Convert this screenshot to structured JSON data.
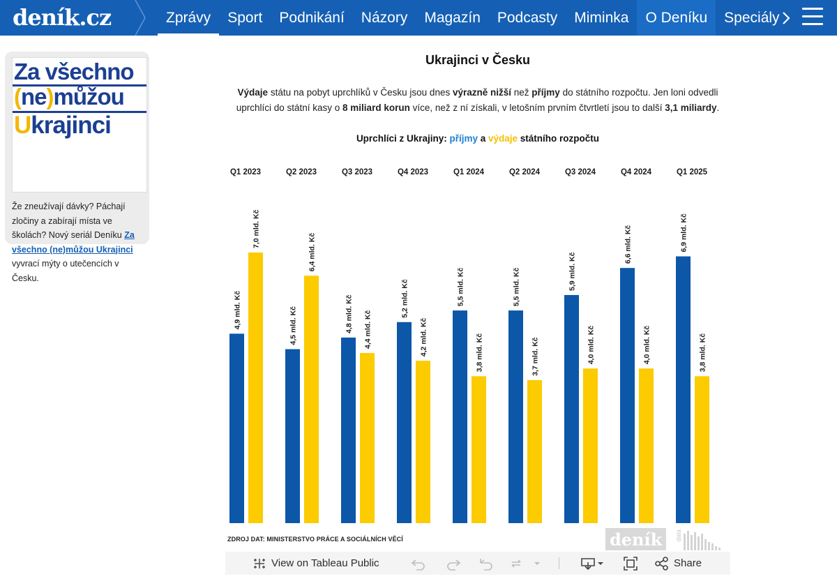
{
  "site": {
    "logo": "deník.cz",
    "nav": [
      "Zprávy",
      "Sport",
      "Podnikání",
      "Názory",
      "Magazín",
      "Podcasty",
      "Miminka",
      "O Deníku",
      "Speciály"
    ],
    "active": "Zprávy"
  },
  "promo": {
    "art_lines": [
      "Za všechno",
      "(ne)můžou",
      "Ukrajinci"
    ],
    "text_before": "Že zneužívají dávky? Páchají zločiny a zabírají místa ve školách? Nový seriál Deníku ",
    "link": "Za všechno (ne)můžou Ukrajinci",
    "text_after": " vyvrací mýty o utečencích v Česku."
  },
  "viz": {
    "title": "Ukrajinci v Česku",
    "desc_parts": [
      {
        "t": "Výdaje",
        "b": true
      },
      {
        "t": " státu na pobyt uprchlíků v Česku jsou dnes ",
        "b": false
      },
      {
        "t": "výrazně nižší",
        "b": true
      },
      {
        "t": " než ",
        "b": false
      },
      {
        "t": "příjmy",
        "b": true
      },
      {
        "t": " do státního rozpočtu. Jen loni odvedli uprchlíci do státní kasy o ",
        "b": false
      },
      {
        "t": "8 miliard korun",
        "b": true
      },
      {
        "t": " více, než z ní získali, v letošním prvním čtvrtletí jsou to další ",
        "b": false
      },
      {
        "t": "3,1 miliardy",
        "b": true
      },
      {
        "t": ".",
        "b": false
      }
    ],
    "subtitle_pre": "Uprchlíci z Ukrajiny: ",
    "subtitle_income": "příjmy",
    "subtitle_and": " a ",
    "subtitle_expense": "výdaje",
    "subtitle_post": " státního rozpočtu",
    "source": "ZDROJ DAT: MINISTERSTVO PRÁCE A SOCIÁLNÍCH VĚCÍ",
    "watermark": "deník",
    "watermark_sub": "data"
  },
  "chart_data": {
    "type": "bar",
    "categories": [
      "Q1 2023",
      "Q2 2023",
      "Q3 2023",
      "Q4 2023",
      "Q1 2024",
      "Q2 2024",
      "Q3 2024",
      "Q4 2024",
      "Q1 2025"
    ],
    "series": [
      {
        "name": "příjmy",
        "color": "#0c57a8",
        "values": [
          4.9,
          4.5,
          4.8,
          5.2,
          5.5,
          5.5,
          5.9,
          6.6,
          6.9
        ],
        "labels": [
          "4,9 mld. Kč",
          "4,5 mld. Kč",
          "4,8 mld. Kč",
          "5,2 mld. Kč",
          "5,5 mld. Kč",
          "5,5 mld. Kč",
          "5,9 mld. Kč",
          "6,6 mld. Kč",
          "6,9 mld. Kč"
        ]
      },
      {
        "name": "výdaje",
        "color": "#fccb00",
        "values": [
          7.0,
          6.4,
          4.4,
          4.2,
          3.8,
          3.7,
          4.0,
          4.0,
          3.8
        ],
        "labels": [
          "7,0 mld. Kč",
          "6,4 mld. Kč",
          "4,4 mld. Kč",
          "4,2 mld. Kč",
          "3,8 mld. Kč",
          "3,7 mld. Kč",
          "4,0 mld. Kč",
          "4,0 mld. Kč",
          "3,8 mld. Kč"
        ]
      }
    ],
    "unit": "mld. Kč",
    "ylim": [
      0,
      7.0
    ],
    "grid": false,
    "legend": "subtitle"
  },
  "toolbar": {
    "view_label": "View on Tableau Public",
    "share_label": "Share"
  }
}
